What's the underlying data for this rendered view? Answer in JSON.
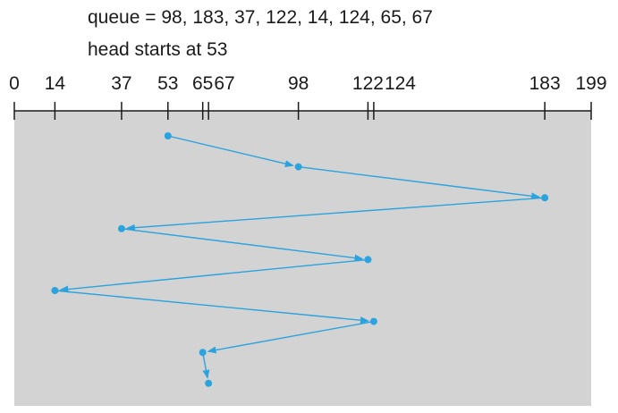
{
  "header": {
    "queue_line": "queue = 98, 183, 37, 122, 14, 124, 65, 67",
    "head_line": "head starts at 53"
  },
  "axis": {
    "min": 0,
    "max": 199,
    "ticks": [
      0,
      14,
      37,
      53,
      65,
      67,
      98,
      122,
      124,
      183,
      199
    ],
    "tick_labels": [
      "0",
      "14",
      "37",
      "53",
      "65",
      "67",
      "98",
      "122",
      "124",
      "183",
      "199"
    ]
  },
  "chart_data": {
    "type": "line",
    "head_start": 53,
    "queue": [
      98,
      183,
      37,
      122,
      14,
      124,
      65,
      67
    ],
    "path": [
      53,
      98,
      183,
      37,
      122,
      14,
      124,
      65,
      67
    ],
    "xlim": [
      0,
      199
    ]
  },
  "colors": {
    "panel": "#d3d3d3",
    "line": "#2aa3de",
    "axis": "#1a1a1a"
  }
}
